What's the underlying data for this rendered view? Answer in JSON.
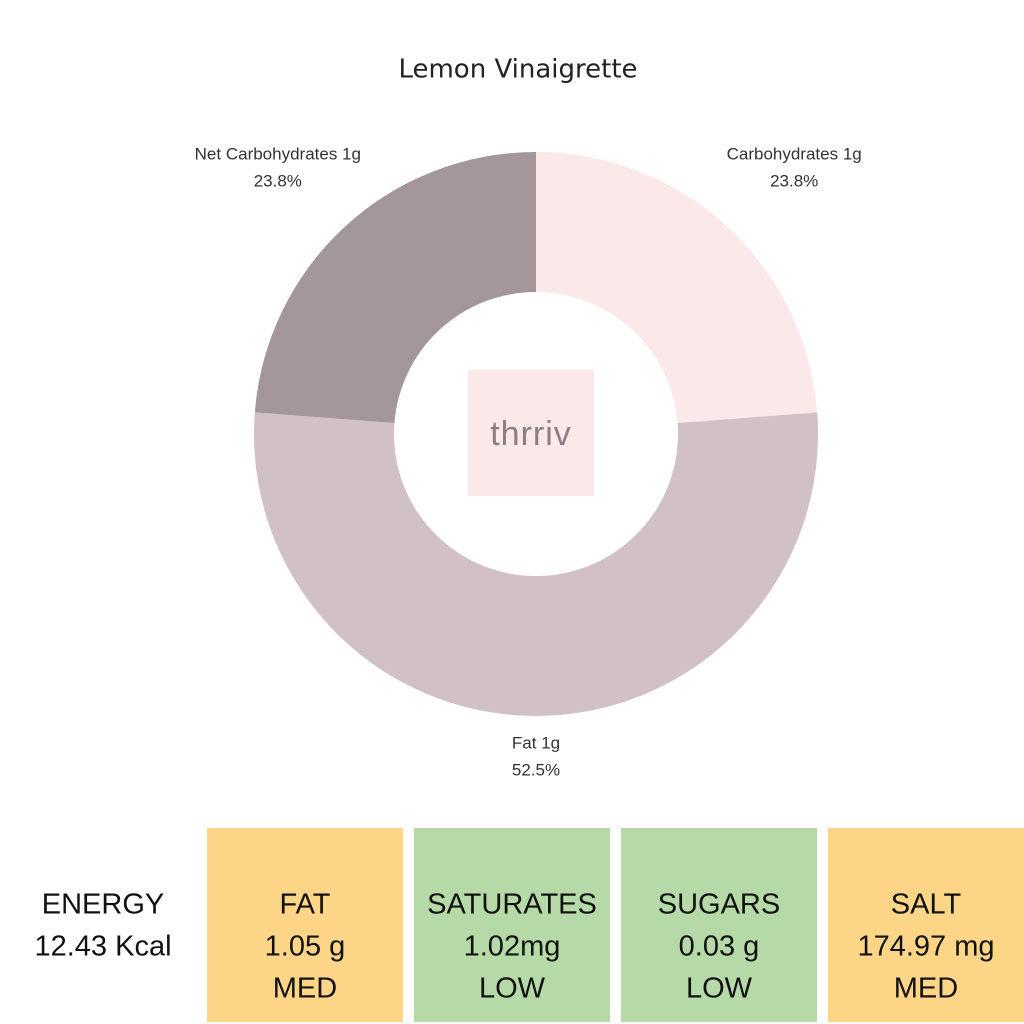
{
  "chart_data": {
    "type": "donut",
    "title": "Lemon Vinaigrette",
    "categories": [
      "Carbohydrates 1g",
      "Fat 1g",
      "Net Carbohydrates 1g"
    ],
    "values": [
      23.8,
      52.5,
      23.8
    ],
    "value_labels": [
      "23.8%",
      "52.5%",
      "23.8%"
    ],
    "colors": [
      "#fbe8e8",
      "#d1c0c4",
      "#a4979c"
    ],
    "center_logo": "thrriv"
  },
  "nutrition": {
    "energy": {
      "label": "ENERGY",
      "value": "12.43 Kcal"
    },
    "boxes": [
      {
        "name": "FAT",
        "value": "1.05 g",
        "level": "MED",
        "color": "#fdd587"
      },
      {
        "name": "SATURATES",
        "value": "1.02mg",
        "level": "LOW",
        "color": "#b6d9a8"
      },
      {
        "name": "SUGARS",
        "value": "0.03 g",
        "level": "LOW",
        "color": "#b6d9a8"
      },
      {
        "name": "SALT",
        "value": "174.97 mg",
        "level": "MED",
        "color": "#fdd587"
      }
    ]
  }
}
